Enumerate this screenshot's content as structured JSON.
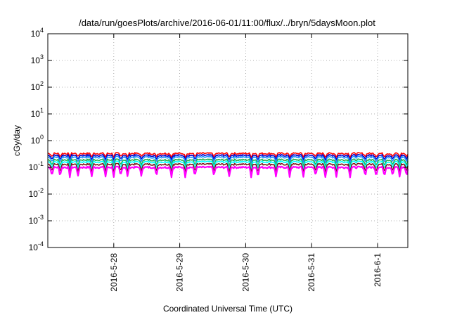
{
  "chart_data": {
    "type": "line",
    "title": "/data/run/goesPlots/archive/2016-06-01/11:00/flux/../bryn/5daysMoon.plot",
    "xlabel": "Coordinated Universal Time (UTC)",
    "ylabel": "cGy/day",
    "y_scale": "log",
    "ylim": [
      0.0001,
      10000
    ],
    "y_ticks": [
      {
        "base": "10",
        "exp": "-4",
        "value": 0.0001
      },
      {
        "base": "10",
        "exp": "-3",
        "value": 0.001
      },
      {
        "base": "10",
        "exp": "-2",
        "value": 0.01
      },
      {
        "base": "10",
        "exp": "-1",
        "value": 0.1
      },
      {
        "base": "10",
        "exp": "0",
        "value": 1
      },
      {
        "base": "10",
        "exp": "1",
        "value": 10
      },
      {
        "base": "10",
        "exp": "2",
        "value": 100
      },
      {
        "base": "10",
        "exp": "3",
        "value": 1000
      },
      {
        "base": "10",
        "exp": "4",
        "value": 10000
      }
    ],
    "xlim": [
      "2016-05-27 00:00",
      "2016-06-01 11:00"
    ],
    "x_ticks": [
      "2016-5-28",
      "2016-5-29",
      "2016-5-30",
      "2016-5-31",
      "2016-6-1"
    ],
    "grid": true,
    "legend": "none",
    "series_colors": [
      "#ff00ff",
      "#7a1a1a",
      "#00ffff",
      "#22b14c",
      "#1e90ff",
      "#0000cc",
      "#ff0000"
    ],
    "levels": [
      0.1,
      0.13,
      0.16,
      0.19,
      0.24,
      0.28,
      0.33
    ],
    "dip_times": [
      "2016-05-27 01:30",
      "2016-05-27 04:30",
      "2016-05-27 08:00",
      "2016-05-27 11:00",
      "2016-05-27 16:00",
      "2016-05-27 21:00",
      "2016-05-28 00:00",
      "2016-05-28 02:30",
      "2016-05-28 05:00",
      "2016-05-28 10:00",
      "2016-05-28 15:30",
      "2016-05-28 21:00",
      "2016-05-29 02:00",
      "2016-05-29 05:30",
      "2016-05-29 12:30",
      "2016-05-29 18:00",
      "2016-05-30 02:00",
      "2016-05-30 04:30",
      "2016-05-30 11:00",
      "2016-05-30 16:00",
      "2016-05-30 21:00",
      "2016-05-31 01:30",
      "2016-05-31 05:00",
      "2016-05-31 09:00",
      "2016-05-31 14:00",
      "2016-05-31 19:30",
      "2016-05-31 23:30",
      "2016-06-01 02:30",
      "2016-06-01 05:30",
      "2016-06-01 08:00",
      "2016-06-01 10:30"
    ]
  }
}
